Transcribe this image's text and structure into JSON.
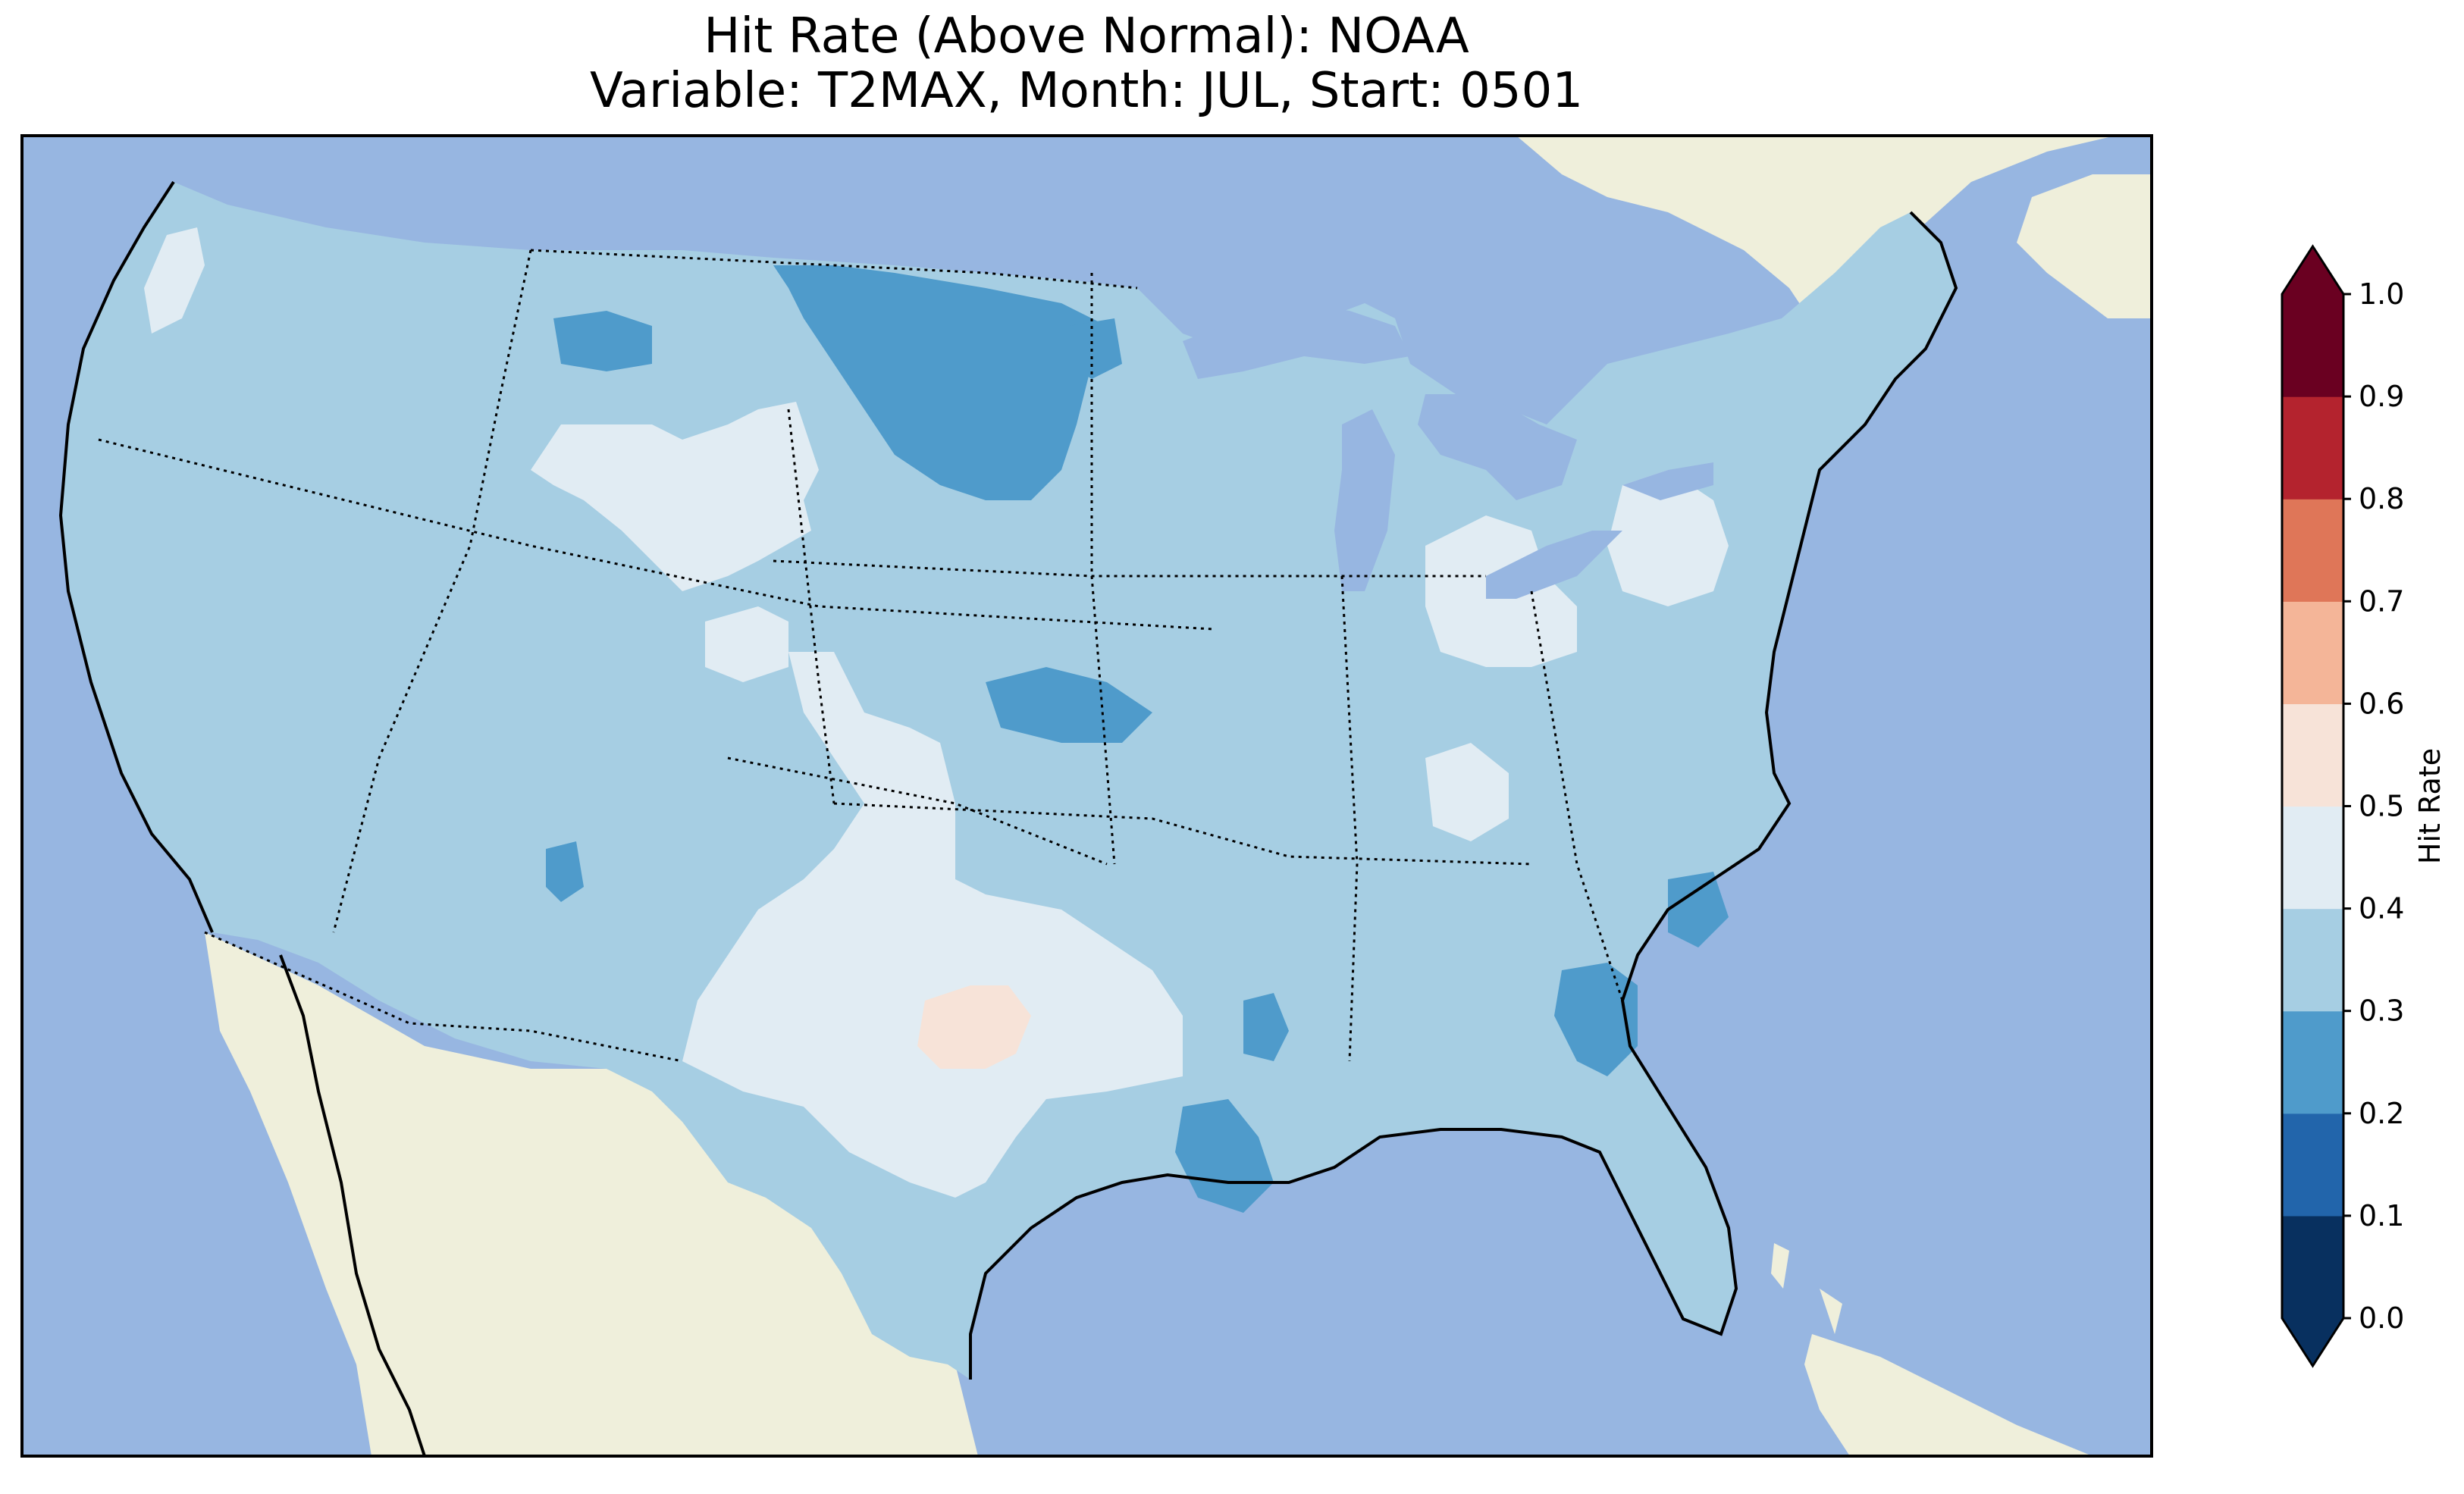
{
  "figure": {
    "title_line1": "Hit Rate (Above Normal): NOAA",
    "title_line2": "Variable: T2MAX, Month: JUL, Start: 0501"
  },
  "map": {
    "region": "Contiguous United States",
    "ocean_color": "#97b6e1",
    "land_color": "#efefdb",
    "lake_color": "#97b6e1",
    "borders": "state and international boundaries dotted, coastlines solid",
    "dominant_category": "0.3-0.4",
    "regions": [
      {
        "area": "Most of CONUS",
        "bin": "0.3-0.4",
        "color": "#a6cee3"
      },
      {
        "area": "North Dakota / northern plains",
        "bin": "0.2-0.3",
        "color": "#4f9bcb"
      },
      {
        "area": "Texas / Oklahoma",
        "bin": "0.4-0.5",
        "color": "#e1ecf3"
      },
      {
        "area": "Utah / Idaho / Wyoming",
        "bin": "0.4-0.5",
        "color": "#e1ecf3"
      },
      {
        "area": "Central Texas",
        "bin": "0.5-0.6",
        "color": "#f7e3d8"
      },
      {
        "area": "Southeastern Louisiana",
        "bin": "0.2-0.3",
        "color": "#4f9bcb"
      },
      {
        "area": "South Carolina / Georgia",
        "bin": "0.2-0.3",
        "color": "#4f9bcb"
      },
      {
        "area": "Ohio / Pennsylvania / Michigan",
        "bin": "0.4-0.5",
        "color": "#e1ecf3"
      }
    ]
  },
  "colorbar": {
    "label": "Hit Rate",
    "ticks": [
      "0.0",
      "0.1",
      "0.2",
      "0.3",
      "0.4",
      "0.5",
      "0.6",
      "0.7",
      "0.8",
      "0.9",
      "1.0"
    ],
    "bins": [
      {
        "range": "0.0-0.1",
        "color": "#08305f"
      },
      {
        "range": "0.1-0.2",
        "color": "#2265ab"
      },
      {
        "range": "0.2-0.3",
        "color": "#4f9bcb"
      },
      {
        "range": "0.3-0.4",
        "color": "#a6cee3"
      },
      {
        "range": "0.4-0.5",
        "color": "#e1ecf3"
      },
      {
        "range": "0.5-0.6",
        "color": "#f7e3d8"
      },
      {
        "range": "0.6-0.7",
        "color": "#f4b598"
      },
      {
        "range": "0.7-0.8",
        "color": "#df7658"
      },
      {
        "range": "0.8-0.9",
        "color": "#b4232e"
      },
      {
        "range": "0.9-1.0",
        "color": "#6a0021"
      }
    ],
    "extend": "both"
  }
}
